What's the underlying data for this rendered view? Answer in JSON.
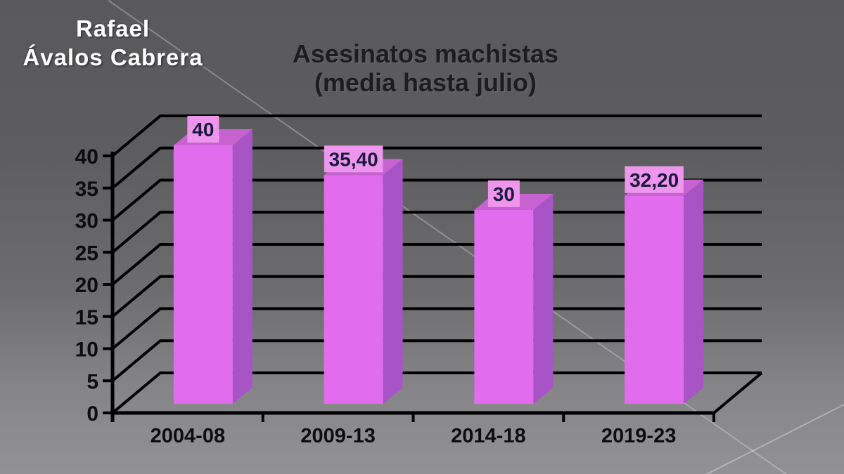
{
  "signature": {
    "line1": "Rafael",
    "line2": "Ávalos Cabrera"
  },
  "chart_data": {
    "type": "bar",
    "style": "3d-column",
    "title": "Asesinatos machistas",
    "subtitle": "(media hasta julio)",
    "categories": [
      "2004-08",
      "2009-13",
      "2014-18",
      "2019-23"
    ],
    "values": [
      40,
      35.4,
      30,
      32.2
    ],
    "value_labels": [
      "40",
      "35,40",
      "30",
      "32,20"
    ],
    "yticks": [
      0,
      5,
      10,
      15,
      20,
      25,
      30,
      35,
      40
    ],
    "ylim": [
      0,
      40
    ],
    "xlabel": "",
    "ylabel": "",
    "legend": "none",
    "grid": "horizontal",
    "colors": {
      "bar_front": "#e16cee",
      "bar_side": "#a853c6",
      "bar_top": "#c763d0",
      "label_box": "#ee96ee",
      "label_text": "#1a1a3d",
      "axis": "#000000",
      "tick_text": "#0d0d0d"
    }
  }
}
